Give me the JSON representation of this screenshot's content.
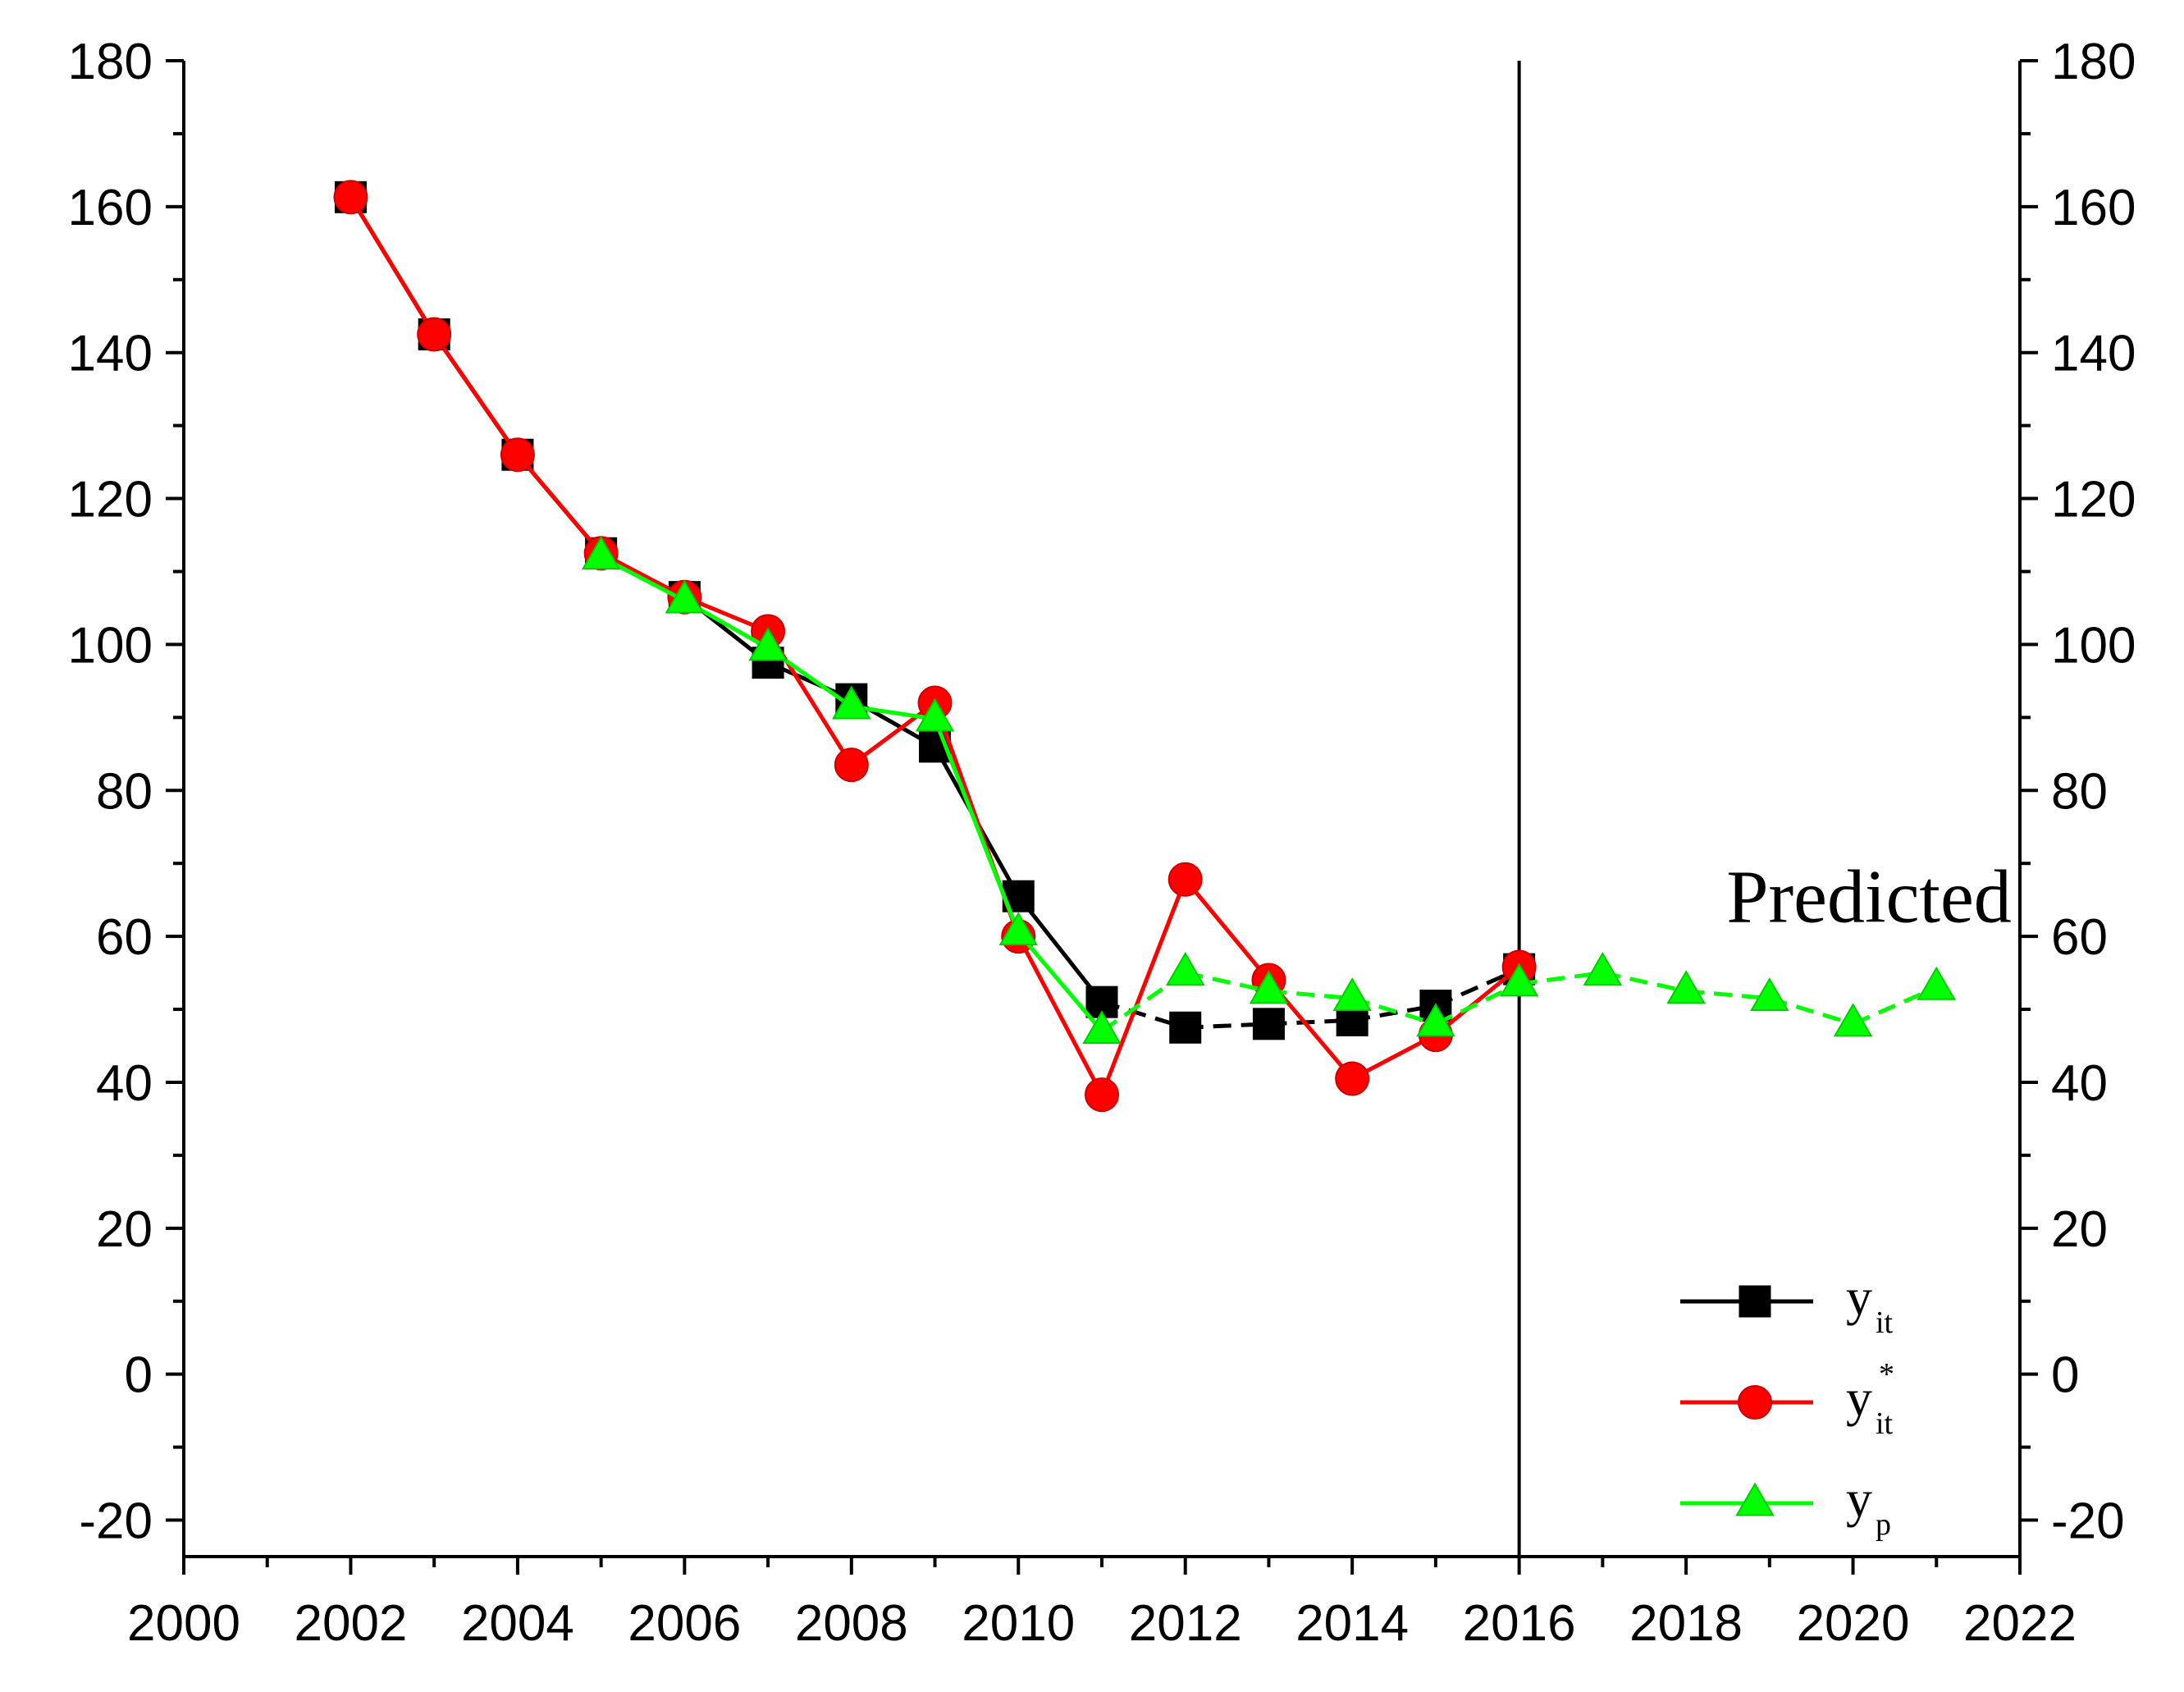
{
  "chart_data": {
    "type": "line",
    "title": "",
    "xlabel": "",
    "ylabel": "",
    "xlim": [
      2000,
      2022
    ],
    "ylim": [
      -25,
      180
    ],
    "x_ticks": [
      2000,
      2002,
      2004,
      2006,
      2008,
      2010,
      2012,
      2014,
      2016,
      2018,
      2020,
      2022
    ],
    "y_ticks": [
      -20,
      0,
      20,
      40,
      60,
      80,
      100,
      120,
      140,
      160,
      180
    ],
    "x_tick_labels": [
      "2000",
      "2002",
      "2004",
      "2006",
      "2008",
      "2010",
      "2012",
      "2014",
      "2016",
      "2018",
      "2020",
      "2022"
    ],
    "y_tick_labels": [
      "-20",
      "0",
      "20",
      "40",
      "60",
      "80",
      "100",
      "120",
      "140",
      "160",
      "180"
    ],
    "right_y_tick_labels": [
      "-20",
      "0",
      "20",
      "40",
      "60",
      "80",
      "100",
      "120",
      "140",
      "160",
      "180"
    ],
    "grid": false,
    "divider_x": 2016,
    "annotation": "Predicted",
    "legend_position": "bottom-right",
    "series": [
      {
        "name": "y_it",
        "legend_main": "y",
        "legend_sub": "it",
        "legend_sup": "",
        "color": "#000000",
        "marker": "square",
        "dashed_from": 2011,
        "x": [
          2002,
          2003,
          2004,
          2005,
          2006,
          2007,
          2008,
          2009,
          2010,
          2011,
          2012,
          2013,
          2014,
          2015,
          2016
        ],
        "y": [
          161.3,
          142.5,
          126.0,
          112.5,
          106.5,
          97.5,
          92.5,
          86.0,
          65.5,
          51.0,
          47.5,
          48.0,
          48.5,
          50.5,
          55.5
        ]
      },
      {
        "name": "y*_it",
        "legend_main": "y",
        "legend_sub": "it",
        "legend_sup": "*",
        "color": "#ff0000",
        "marker": "circle",
        "x": [
          2002,
          2003,
          2004,
          2005,
          2006,
          2007,
          2008,
          2009,
          2010,
          2011,
          2012,
          2013,
          2014,
          2015,
          2016
        ],
        "y": [
          161.3,
          142.5,
          126.0,
          112.5,
          106.5,
          101.8,
          83.5,
          92.0,
          60.0,
          38.3,
          67.8,
          54.0,
          40.5,
          46.5,
          55.8
        ]
      },
      {
        "name": "y_p",
        "legend_main": "y",
        "legend_sub": "p",
        "legend_sup": "",
        "color": "#00ff00",
        "marker": "triangle",
        "dashed_from": 2011,
        "x": [
          2005,
          2006,
          2007,
          2008,
          2009,
          2010,
          2011,
          2012,
          2013,
          2014,
          2015,
          2016,
          2017,
          2018,
          2019,
          2020,
          2021
        ],
        "y": [
          112.0,
          106.0,
          99.5,
          91.5,
          89.8,
          60.5,
          47.0,
          55.0,
          52.5,
          51.5,
          48.0,
          53.5,
          55.0,
          52.5,
          51.5,
          48.0,
          53.0
        ]
      }
    ]
  }
}
